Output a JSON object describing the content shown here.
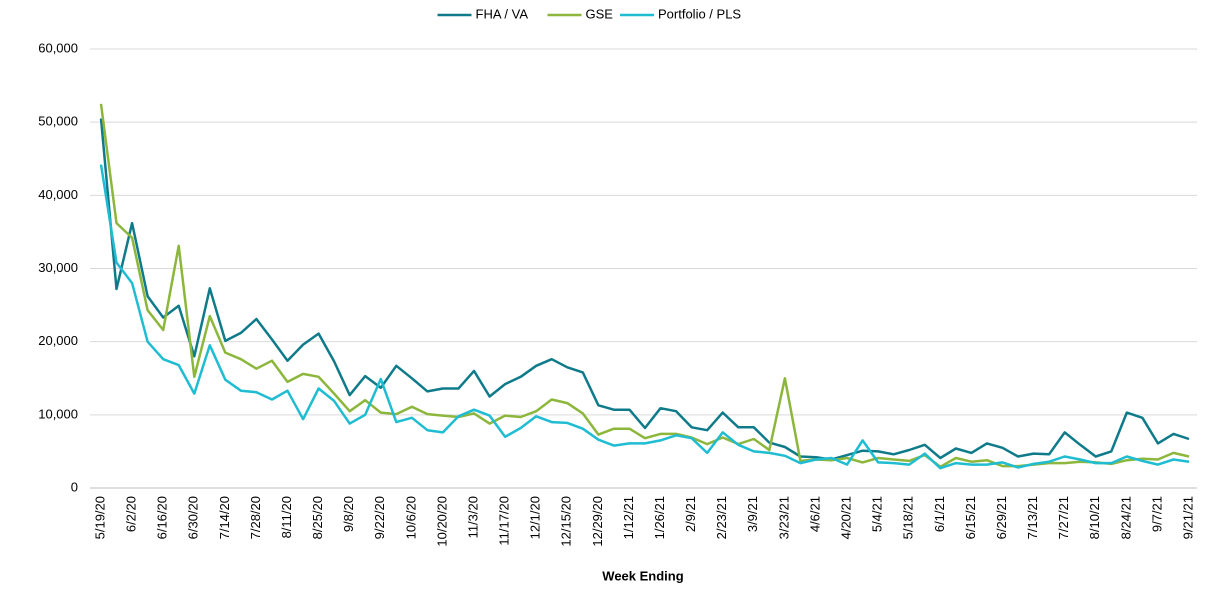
{
  "chart_data": {
    "type": "line",
    "x_label": "Week Ending",
    "categories": [
      "5/19/20",
      null,
      "6/2/20",
      null,
      "6/16/20",
      null,
      "6/30/20",
      null,
      "7/14/20",
      null,
      "7/28/20",
      null,
      "8/11/20",
      null,
      "8/25/20",
      null,
      "9/8/20",
      null,
      "9/22/20",
      null,
      "10/6/20",
      null,
      "10/20/20",
      null,
      "11/3/20",
      null,
      "11/17/20",
      null,
      "12/1/20",
      null,
      "12/15/20",
      null,
      "12/29/20",
      null,
      "1/12/21",
      null,
      "1/26/21",
      null,
      "2/9/21",
      null,
      "2/23/21",
      null,
      "3/9/21",
      null,
      "3/23/21",
      null,
      "4/6/21",
      null,
      "4/20/21",
      null,
      "5/4/21",
      null,
      "5/18/21",
      null,
      "6/1/21",
      null,
      "6/15/21",
      null,
      "6/29/21",
      null,
      "7/13/21",
      null,
      "7/27/21",
      null,
      "8/10/21",
      null,
      "8/24/21",
      null,
      "9/7/21",
      null,
      "9/21/21"
    ],
    "series": [
      {
        "name": "FHA / VA",
        "color": "#0f7b8a",
        "values": [
          50500,
          27200,
          36200,
          26200,
          23300,
          24900,
          18000,
          27300,
          20100,
          21200,
          23100,
          20300,
          17400,
          19600,
          21100,
          17300,
          12700,
          15300,
          13700,
          16700,
          15000,
          13200,
          13600,
          13600,
          16000,
          12500,
          14200,
          15200,
          16700,
          17600,
          16500,
          15800,
          11300,
          10700,
          10700,
          8200,
          10900,
          10500,
          8300,
          7900,
          10300,
          8300,
          8300,
          6200,
          5600,
          4300,
          4200,
          3900,
          4500,
          5100,
          5000,
          4600,
          5200,
          5900,
          4100,
          5400,
          4800,
          6100,
          5500,
          4300,
          4700,
          4600,
          7600,
          5900,
          4300,
          5000,
          10300,
          9600,
          6100,
          7400,
          6700
        ]
      },
      {
        "name": "GSE",
        "color": "#8cb63c",
        "values": [
          52500,
          36200,
          34200,
          24300,
          21600,
          33100,
          15200,
          23500,
          18500,
          17600,
          16300,
          17400,
          14500,
          15600,
          15200,
          12900,
          10500,
          12000,
          10300,
          10100,
          11100,
          10100,
          9900,
          9700,
          10200,
          8800,
          9900,
          9700,
          10500,
          12100,
          11600,
          10200,
          7300,
          8100,
          8100,
          6800,
          7400,
          7400,
          6900,
          6000,
          6900,
          6000,
          6700,
          5200,
          15000,
          3700,
          3900,
          3800,
          4100,
          3500,
          4100,
          3900,
          3700,
          4500,
          2900,
          4100,
          3600,
          3800,
          3000,
          3000,
          3200,
          3400,
          3400,
          3600,
          3500,
          3300,
          3800,
          4000,
          3900,
          4800,
          4300
        ]
      },
      {
        "name": "Portfolio / PLS",
        "color": "#1fbcd2",
        "values": [
          44200,
          30800,
          28000,
          20000,
          17600,
          16800,
          12900,
          19500,
          14800,
          13300,
          13100,
          12100,
          13300,
          9400,
          13600,
          11900,
          8800,
          10000,
          14900,
          9000,
          9600,
          7900,
          7600,
          9800,
          10700,
          9900,
          7000,
          8200,
          9800,
          9000,
          8900,
          8100,
          6600,
          5800,
          6100,
          6100,
          6500,
          7200,
          6800,
          4800,
          7600,
          5900,
          5000,
          4800,
          4400,
          3400,
          3900,
          4100,
          3200,
          6500,
          3500,
          3400,
          3200,
          4700,
          2700,
          3400,
          3200,
          3200,
          3500,
          2800,
          3300,
          3600,
          4300,
          3900,
          3400,
          3400,
          4300,
          3700,
          3200,
          3900,
          3600
        ]
      }
    ],
    "ylim": [
      0,
      60000
    ],
    "yticks": [
      0,
      {
        "value": 10000,
        "label": "10,000"
      },
      {
        "value": 20000,
        "label": "20,000"
      },
      {
        "value": 30000,
        "label": "30,000"
      },
      {
        "value": 40000,
        "label": "40,000"
      },
      {
        "value": 50000,
        "label": "50,000"
      },
      {
        "value": 60000,
        "label": "60,000"
      }
    ],
    "grid": true,
    "legend": "top"
  }
}
